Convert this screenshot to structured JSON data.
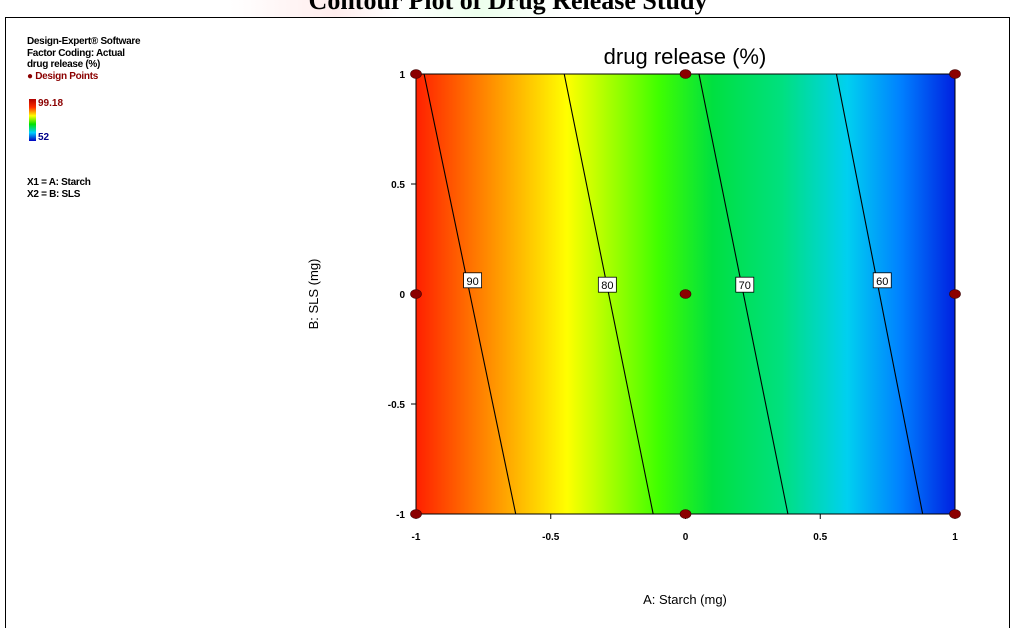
{
  "page": {
    "title": "Contour Plot of Drug Release Study"
  },
  "info_panel": {
    "software": "Design-Expert® Software",
    "factor_coding": "Factor Coding: Actual",
    "response_line1": "drug release (%)",
    "design_points": "● Design Points",
    "legend_max": "99.18",
    "legend_min": "52",
    "x1": "X1 = A: Starch",
    "x2": "X2 = B: SLS"
  },
  "colors": {
    "high": "#ff2000",
    "low": "#0020e0",
    "point": "#8b0000"
  },
  "chart_data": {
    "type": "contour",
    "title": "drug release (%)",
    "xlabel": "A: Starch (mg)",
    "ylabel": "B: SLS (mg)",
    "xlim": [
      -1,
      1
    ],
    "ylim": [
      -1,
      1
    ],
    "x_ticks": [
      "-1",
      "-0.5",
      "0",
      "0.5",
      "1"
    ],
    "y_ticks": [
      "1",
      "0.5",
      "0",
      "-0.5",
      "-1"
    ],
    "response_range": [
      52,
      99.18
    ],
    "contours": [
      {
        "level": 90,
        "label": "90",
        "bottom": [
          -0.63,
          -1
        ],
        "top": [
          -0.97,
          1
        ],
        "label_at": [
          -0.79,
          0.06
        ]
      },
      {
        "level": 80,
        "label": "80",
        "bottom": [
          -0.12,
          -1
        ],
        "top": [
          -0.45,
          1
        ],
        "label_at": [
          -0.29,
          0.04
        ]
      },
      {
        "level": 70,
        "label": "70",
        "bottom": [
          0.38,
          -1
        ],
        "top": [
          0.05,
          1
        ],
        "label_at": [
          0.22,
          0.04
        ]
      },
      {
        "level": 60,
        "label": "60",
        "bottom": [
          0.88,
          -1
        ],
        "top": [
          0.56,
          1
        ],
        "label_at": [
          0.73,
          0.06
        ]
      }
    ],
    "design_points": [
      {
        "x": -1,
        "y": 1
      },
      {
        "x": 0,
        "y": 1
      },
      {
        "x": 1,
        "y": 1
      },
      {
        "x": -1,
        "y": 0
      },
      {
        "x": 0,
        "y": 0
      },
      {
        "x": 1,
        "y": 0
      },
      {
        "x": -1,
        "y": -1
      },
      {
        "x": 0,
        "y": -1
      },
      {
        "x": 1,
        "y": -1
      }
    ]
  }
}
